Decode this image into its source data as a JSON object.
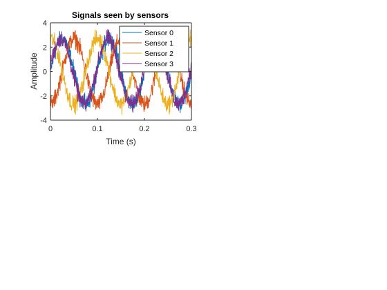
{
  "chart_data": {
    "type": "line",
    "title": "Signals seen by sensors",
    "xlabel": "Time (s)",
    "ylabel": "Amplitude",
    "xlim": [
      0,
      0.3
    ],
    "ylim": [
      -4,
      4
    ],
    "xticks": [
      0,
      0.1,
      0.2,
      0.3
    ],
    "xtick_labels": [
      "0",
      "0.1",
      "0.2",
      "0.3"
    ],
    "yticks": [
      -4,
      -2,
      0,
      2,
      4
    ],
    "ytick_labels": [
      "-4",
      "-2",
      "0",
      "2",
      "4"
    ],
    "grid": false,
    "legend_location": "top-right",
    "series": [
      {
        "name": "Sensor 0",
        "color": "#0072BD",
        "amplitude": 2.7,
        "frequency_hz": 10,
        "phase_deg": 0,
        "noise": 0.35
      },
      {
        "name": "Sensor 1",
        "color": "#D95319",
        "amplitude": 2.7,
        "frequency_hz": 10,
        "phase_deg": -90,
        "noise": 0.35
      },
      {
        "name": "Sensor 2",
        "color": "#EDB120",
        "amplitude": 2.7,
        "frequency_hz": 10,
        "phase_deg": 90,
        "noise": 0.35
      },
      {
        "name": "Sensor 3",
        "color": "#7E2F8E",
        "amplitude": 2.7,
        "frequency_hz": 10,
        "phase_deg": 10,
        "noise": 0.35
      }
    ]
  }
}
